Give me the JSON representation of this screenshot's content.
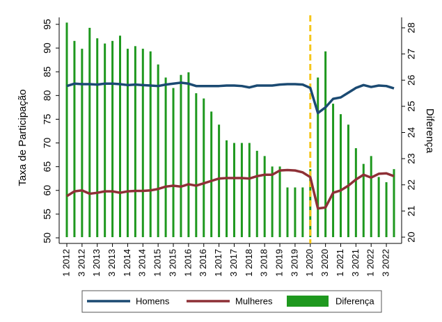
{
  "chart_data": {
    "type": "combo",
    "y_label": "Taxa de Participação",
    "y2_label": "Diferença",
    "categories": [
      "1 2012",
      null,
      "3 2012",
      null,
      "1 2013",
      null,
      "3 2013",
      null,
      "1 2014",
      null,
      "3 2014",
      null,
      "1 2015",
      null,
      "3 2015",
      null,
      "1 2016",
      null,
      "3 2016",
      null,
      "1 2017",
      null,
      "3 2017",
      null,
      "1 2018",
      null,
      "3 2018",
      null,
      "1 2019",
      null,
      "3 2019",
      null,
      "1 2020",
      null,
      "3 2020",
      null,
      "1 2021",
      null,
      "3 2021",
      null,
      "1 2022",
      null,
      "3 2022",
      null
    ],
    "vline": "1 2020",
    "vline_color": "#f5c518",
    "ylim": [
      50,
      95
    ],
    "yticks": [
      50,
      55,
      60,
      65,
      70,
      75,
      80,
      85,
      90,
      95
    ],
    "y2lim": [
      20,
      28
    ],
    "y2ticks": [
      20,
      21,
      22,
      23,
      24,
      25,
      26,
      27,
      28
    ],
    "series": [
      {
        "name": "Homens",
        "type": "line",
        "color": "#1b4a72",
        "values": [
          82.0,
          82.5,
          82.4,
          82.4,
          82.3,
          82.5,
          82.5,
          82.4,
          82.2,
          82.3,
          82.2,
          82.1,
          82.0,
          82.3,
          82.5,
          82.7,
          82.5,
          82.0,
          82.0,
          82.0,
          82.0,
          82.1,
          82.1,
          82.0,
          81.7,
          82.1,
          82.1,
          82.1,
          82.3,
          82.4,
          82.4,
          82.3,
          81.6,
          76.3,
          77.5,
          79.3,
          79.6,
          80.6,
          81.6,
          82.2,
          81.8,
          82.1,
          82.0,
          81.5
        ]
      },
      {
        "name": "Mulheres",
        "type": "line",
        "color": "#8e3036",
        "values": [
          58.8,
          59.8,
          60.0,
          59.3,
          59.5,
          59.8,
          59.8,
          59.5,
          59.8,
          59.9,
          59.9,
          60.0,
          60.3,
          60.8,
          61.0,
          60.8,
          61.3,
          61.0,
          61.5,
          62.0,
          62.5,
          62.6,
          62.6,
          62.6,
          62.5,
          63.0,
          63.3,
          63.3,
          64.2,
          64.3,
          64.2,
          63.8,
          62.8,
          56.2,
          56.4,
          59.5,
          60.0,
          61.0,
          62.3,
          63.3,
          62.7,
          63.5,
          63.6,
          63.0
        ]
      },
      {
        "name": "Diferença",
        "type": "bar",
        "axis": "y2",
        "color": "#1e981e",
        "values": [
          28.2,
          27.5,
          27.2,
          28.0,
          27.6,
          27.4,
          27.5,
          27.7,
          27.2,
          27.3,
          27.2,
          27.1,
          26.6,
          26.1,
          25.7,
          26.2,
          26.3,
          25.5,
          25.3,
          24.8,
          24.3,
          23.7,
          23.6,
          23.6,
          23.6,
          23.3,
          23.1,
          22.7,
          22.7,
          21.9,
          21.9,
          21.9,
          22.6,
          26.1,
          27.1,
          25.1,
          24.7,
          24.3,
          23.4,
          22.8,
          23.1,
          22.3,
          22.1,
          22.6
        ]
      }
    ]
  }
}
